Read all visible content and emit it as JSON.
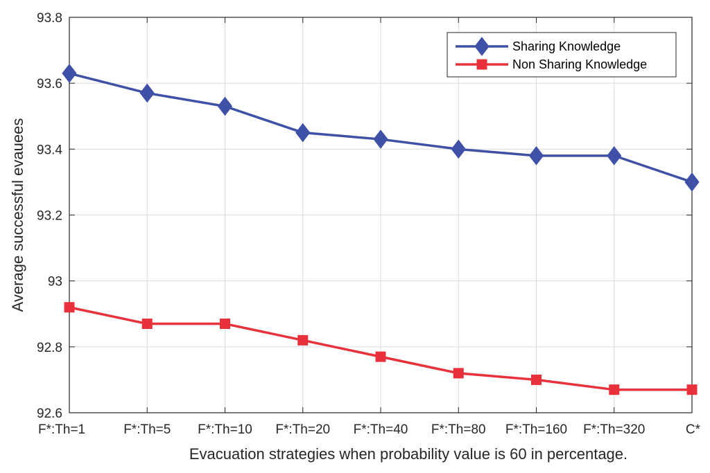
{
  "chart_data": {
    "type": "line",
    "title": "",
    "xlabel": "Evacuation strategies when probability value is 60 in percentage.",
    "ylabel": "Average successful evauees",
    "categories": [
      "F*:Th=1",
      "F*:Th=5",
      "F*:Th=10",
      "F*:Th=20",
      "F*:Th=40",
      "F*:Th=80",
      "F*:Th=160",
      "F*:Th=320",
      "C*"
    ],
    "ylim": [
      92.6,
      93.8
    ],
    "yticks": [
      92.6,
      92.8,
      93.0,
      93.2,
      93.4,
      93.6,
      93.8
    ],
    "ytick_labels": [
      "92.6",
      "92.8",
      "93",
      "93.2",
      "93.4",
      "93.6",
      "93.8"
    ],
    "grid": true,
    "legend_position": "top-right",
    "series": [
      {
        "name": "Sharing Knowledge",
        "color": "#3f51a6",
        "marker": "diamond",
        "values": [
          93.63,
          93.57,
          93.53,
          93.45,
          93.43,
          93.4,
          93.38,
          93.38,
          93.3
        ]
      },
      {
        "name": "Non Sharing Knowledge",
        "color": "#e8313a",
        "marker": "square",
        "values": [
          92.92,
          92.87,
          92.87,
          92.82,
          92.77,
          92.72,
          92.7,
          92.67,
          92.67
        ]
      }
    ]
  }
}
